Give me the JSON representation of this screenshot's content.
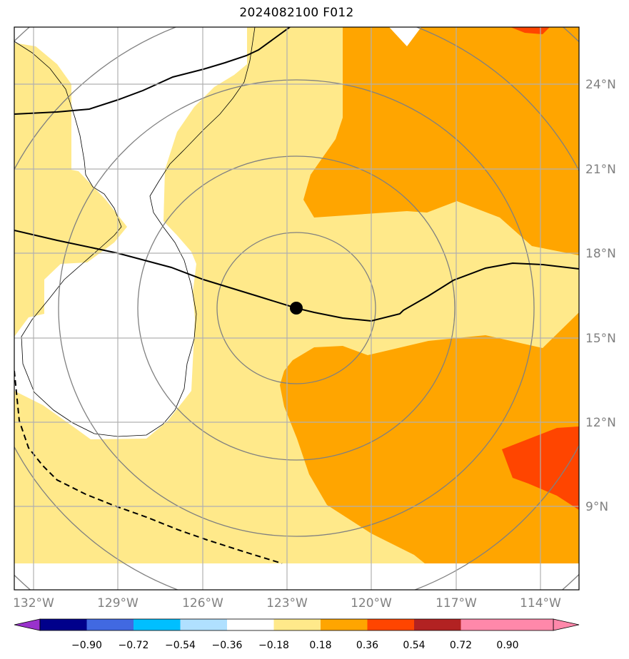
{
  "title": "2024082100 F012",
  "longitude_labels": [
    "132°W",
    "129°W",
    "126°W",
    "123°W",
    "120°W",
    "117°W",
    "114°W"
  ],
  "latitude_labels": [
    "24°N",
    "21°N",
    "18°N",
    "15°N",
    "12°N",
    "9°N"
  ],
  "colorbar": {
    "ticks": [
      "−0.90",
      "−0.72",
      "−0.54",
      "−0.36",
      "−0.18",
      "0.18",
      "0.36",
      "0.54",
      "0.72",
      "0.90"
    ],
    "colors": [
      "#9932cc",
      "#00008b",
      "#4169e1",
      "#00bfff",
      "#b0e0ff",
      "#ffffff",
      "#ffe98a",
      "#ffa500",
      "#ff4500",
      "#b22222",
      "#ff88aa"
    ]
  },
  "map": {
    "background_color": "#ffe98a",
    "field_colors": {
      "light": "#ffe98a",
      "orange": "#ffa500",
      "red": "#ff4500",
      "white": "#ffffff"
    },
    "storm_center": {
      "lon": -122.7,
      "lat": 16.0
    }
  }
}
